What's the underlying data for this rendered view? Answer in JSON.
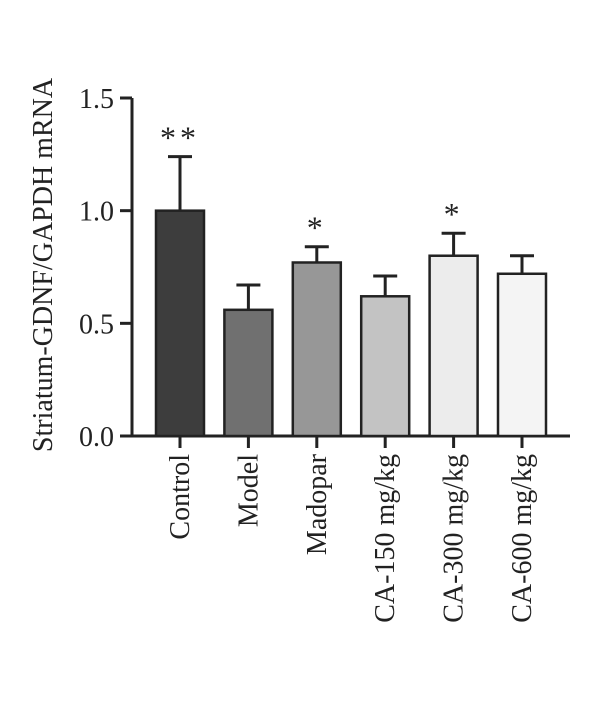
{
  "chart_data": {
    "type": "bar",
    "title": "",
    "xlabel": "",
    "ylabel": "Striatum-GDNF/GAPDH mRNA",
    "ylim": [
      0,
      1.5
    ],
    "yticks": [
      0.0,
      0.5,
      1.0,
      1.5
    ],
    "ytick_labels": [
      "0.0",
      "0.5",
      "1.0",
      "1.5"
    ],
    "categories": [
      "Control",
      "Model",
      "Madopar",
      "CA-150 mg/kg",
      "CA-300 mg/kg",
      "CA-600 mg/kg"
    ],
    "values": [
      1.0,
      0.56,
      0.77,
      0.62,
      0.8,
      0.72
    ],
    "errors": [
      0.24,
      0.11,
      0.07,
      0.09,
      0.1,
      0.08
    ],
    "significance": [
      "**",
      "",
      "*",
      "",
      "*",
      ""
    ],
    "bar_colors": [
      "#3d3d3d",
      "#707070",
      "#979797",
      "#c3c3c3",
      "#ececec",
      "#f4f4f4"
    ],
    "grid": false,
    "legend": "none"
  }
}
